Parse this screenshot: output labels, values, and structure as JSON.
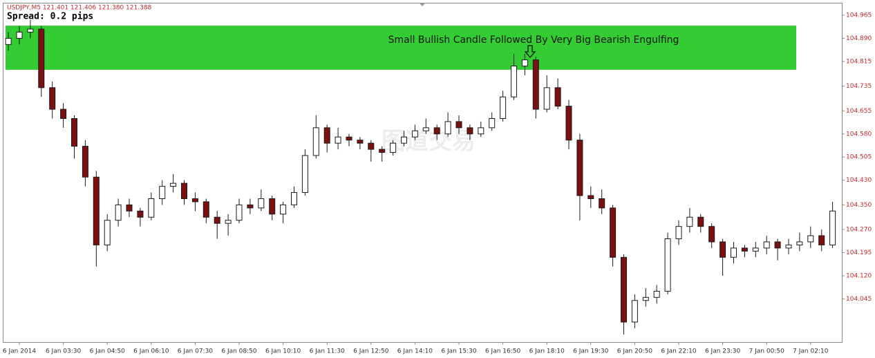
{
  "chart_data": {
    "type": "candlestick",
    "header": "USDJPY,M5  121.401 121.406 121.380 121.388",
    "spread": "Spread: 0.2 pips",
    "annotation": "Small Bullish Candle Followed By Very Big Bearish Engulfing",
    "watermark": "图道交易",
    "zone": {
      "ylim": [
        104.788,
        104.931
      ],
      "color": "#33cc33"
    },
    "up_color": "#ffffff",
    "down_color": "#7a1010",
    "wick_color": "#1a1a1a",
    "ylim": [
      103.905,
      105.003
    ],
    "yticks": [
      104.965,
      {
        "value": 104.89,
        "label": "104.890"
      },
      104.815,
      104.735,
      104.655,
      {
        "value": 104.58,
        "label": "104.580"
      },
      104.505,
      {
        "value": 104.43,
        "label": "104.430"
      },
      {
        "value": 104.35,
        "label": "104.350"
      },
      {
        "value": 104.27,
        "label": "104.270"
      },
      104.195,
      {
        "value": 104.12,
        "label": "104.120"
      },
      104.045
    ],
    "categories": [
      null,
      "6 Jan 2014",
      null,
      null,
      null,
      "6 Jan 03:30",
      null,
      null,
      null,
      "6 Jan 04:50",
      null,
      null,
      null,
      "6 Jan 06:10",
      null,
      null,
      null,
      "6 Jan 07:30",
      null,
      null,
      null,
      "6 Jan 08:50",
      null,
      null,
      null,
      "6 Jan 10:10",
      null,
      null,
      null,
      "6 Jan 11:30",
      null,
      null,
      null,
      "6 Jan 12:50",
      null,
      null,
      null,
      "6 Jan 14:10",
      null,
      null,
      null,
      "6 Jan 15:30",
      null,
      null,
      null,
      "6 Jan 16:50",
      null,
      null,
      null,
      "6 Jan 18:10",
      null,
      null,
      null,
      "6 Jan 19:30",
      null,
      null,
      null,
      "6 Jan 20:50",
      null,
      null,
      null,
      "6 Jan 22:10",
      null,
      null,
      null,
      "6 Jan 23:30",
      null,
      null,
      null,
      "7 Jan 00:50",
      null,
      null,
      null,
      "7 Jan 02:10",
      null,
      null
    ],
    "open": [
      104.87,
      104.89,
      104.91,
      104.92,
      104.73,
      104.66,
      104.63,
      104.54,
      104.44,
      104.22,
      104.3,
      104.35,
      104.33,
      104.31,
      104.37,
      104.41,
      104.42,
      104.37,
      104.36,
      104.31,
      104.29,
      104.3,
      104.35,
      104.34,
      104.37,
      104.32,
      104.35,
      104.39,
      104.51,
      104.6,
      104.55,
      104.57,
      104.56,
      104.55,
      104.53,
      104.52,
      104.55,
      104.57,
      104.59,
      104.6,
      104.58,
      104.62,
      104.6,
      104.58,
      104.6,
      104.63,
      104.7,
      104.8,
      104.82,
      104.66,
      104.73,
      104.67,
      104.56,
      104.38,
      104.37,
      104.34,
      104.18,
      103.97,
      104.04,
      104.05,
      104.07,
      104.24,
      104.28,
      104.31,
      104.28,
      104.23,
      104.18,
      104.21,
      104.2,
      104.21,
      104.23,
      104.21,
      104.22,
      104.23,
      104.25,
      104.22
    ],
    "high": [
      104.91,
      104.93,
      104.95,
      104.93,
      104.75,
      104.68,
      104.64,
      104.56,
      104.46,
      104.32,
      104.37,
      104.37,
      104.34,
      104.39,
      104.43,
      104.45,
      104.43,
      104.39,
      104.37,
      104.33,
      104.32,
      104.37,
      104.37,
      104.4,
      104.38,
      104.36,
      104.41,
      104.53,
      104.64,
      104.61,
      104.6,
      104.58,
      104.57,
      104.56,
      104.54,
      104.56,
      104.59,
      104.61,
      104.63,
      104.61,
      104.65,
      104.64,
      104.61,
      104.62,
      104.65,
      104.72,
      104.84,
      104.84,
      104.83,
      104.77,
      104.76,
      104.69,
      104.58,
      104.41,
      104.4,
      104.35,
      104.19,
      104.06,
      104.08,
      104.09,
      104.26,
      104.3,
      104.34,
      104.32,
      104.29,
      104.24,
      104.23,
      104.22,
      104.23,
      104.25,
      104.24,
      104.24,
      104.26,
      104.28,
      104.27,
      104.36
    ],
    "low": [
      104.85,
      104.87,
      104.89,
      104.7,
      104.63,
      104.6,
      104.5,
      104.41,
      104.15,
      104.2,
      104.28,
      104.31,
      104.28,
      104.3,
      104.35,
      104.39,
      104.35,
      104.33,
      104.29,
      104.24,
      104.25,
      104.29,
      104.32,
      104.33,
      104.3,
      104.29,
      104.34,
      104.38,
      104.5,
      104.52,
      104.53,
      104.54,
      104.53,
      104.49,
      104.49,
      104.51,
      104.54,
      104.56,
      104.58,
      104.56,
      104.57,
      104.58,
      104.56,
      104.57,
      104.59,
      104.62,
      104.69,
      104.77,
      104.63,
      104.65,
      104.66,
      104.53,
      104.3,
      104.34,
      104.32,
      104.15,
      103.93,
      103.95,
      104.02,
      104.03,
      104.06,
      104.22,
      104.26,
      104.26,
      104.21,
      104.12,
      104.16,
      104.18,
      104.18,
      104.19,
      104.17,
      104.19,
      104.2,
      104.21,
      104.2,
      104.21
    ],
    "close": [
      104.89,
      104.91,
      104.92,
      104.73,
      104.66,
      104.63,
      104.54,
      104.44,
      104.22,
      104.3,
      104.35,
      104.33,
      104.31,
      104.37,
      104.41,
      104.42,
      104.37,
      104.36,
      104.31,
      104.29,
      104.3,
      104.35,
      104.34,
      104.37,
      104.32,
      104.35,
      104.39,
      104.51,
      104.6,
      104.55,
      104.57,
      104.56,
      104.55,
      104.53,
      104.52,
      104.55,
      104.57,
      104.59,
      104.6,
      104.58,
      104.62,
      104.6,
      104.58,
      104.6,
      104.63,
      104.7,
      104.8,
      104.82,
      104.66,
      104.73,
      104.67,
      104.56,
      104.38,
      104.37,
      104.34,
      104.18,
      103.97,
      104.04,
      104.05,
      104.07,
      104.24,
      104.28,
      104.31,
      104.28,
      104.23,
      104.18,
      104.21,
      104.2,
      104.21,
      104.23,
      104.21,
      104.22,
      104.23,
      104.25,
      104.22,
      104.33
    ]
  }
}
